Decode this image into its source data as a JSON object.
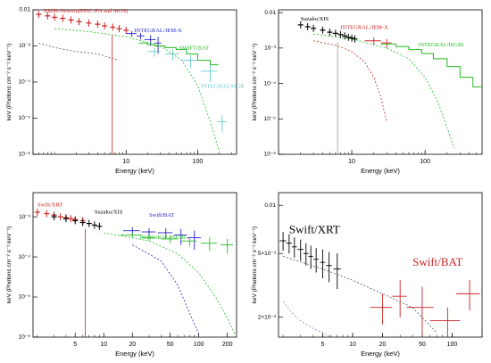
{
  "chart_data": [
    {
      "type": "scatter",
      "panel": "top-left",
      "xlabel": "Energy (keV)",
      "ylabel": "keV (Photons cm⁻² s⁻¹ keV⁻¹)",
      "xscale": "log",
      "yscale": "log",
      "xlim": [
        0.5,
        350
      ],
      "ylim": [
        1e-06,
        0.01
      ],
      "xticks": [
        {
          "v": 10,
          "label": "10"
        },
        {
          "v": 100,
          "label": "100"
        }
      ],
      "yticks": [
        {
          "v": 0.01,
          "label": "0.01"
        },
        {
          "v": 0.001,
          "label": "10⁻³"
        },
        {
          "v": 0.0001,
          "label": "10⁻⁴"
        },
        {
          "v": 1e-05,
          "label": "10⁻⁵"
        },
        {
          "v": 1e-06,
          "label": "10⁻⁶"
        }
      ],
      "annotations": [
        {
          "text": "XMM-Newton(EPIC-PN and MOS)",
          "color": "#cc2222",
          "x": 0.7,
          "y": 0.0085
        },
        {
          "text": "INTEGRAL/JEM-X",
          "color": "#2222cc",
          "x": 13,
          "y": 0.0024
        },
        {
          "text": "SWIFT/BAT",
          "color": "#22bb22",
          "x": 55,
          "y": 0.0008
        },
        {
          "text": "INTEGRAL/ISGRI",
          "color": "#66cccc",
          "x": 110,
          "y": 7e-05
        }
      ],
      "series": [
        {
          "name": "XMM-Newton(EPIC-PN and MOS)",
          "kind": "points",
          "color": "#cc2222",
          "x": [
            0.6,
            0.8,
            1,
            1.3,
            1.7,
            2.2,
            3,
            4,
            5,
            6.5,
            8,
            10
          ],
          "y": [
            0.0075,
            0.0068,
            0.0062,
            0.0058,
            0.0052,
            0.0047,
            0.0043,
            0.004,
            0.0036,
            0.0033,
            0.003,
            0.0027
          ]
        },
        {
          "name": "INTEGRAL/JEM-X",
          "kind": "errorbars",
          "color": "#2222cc",
          "x": [
            12,
            16,
            22,
            28
          ],
          "y": [
            0.0022,
            0.0019,
            0.0015,
            0.0012
          ],
          "xerr": [
            2,
            2,
            4,
            3
          ],
          "yerr": [
            0.0004,
            0.0004,
            0.0005,
            0.0006
          ]
        },
        {
          "name": "SWIFT/BAT",
          "kind": "step",
          "color": "#22bb22",
          "x": [
            15,
            20,
            25,
            35,
            50,
            70,
            100,
            150
          ],
          "y": [
            0.0012,
            0.0011,
            0.001,
            0.0009,
            0.0008,
            0.0006,
            0.0004,
            0.0003
          ]
        },
        {
          "name": "INTEGRAL/ISGRI",
          "kind": "errorbars",
          "color": "#66cccc",
          "x": [
            25,
            45,
            80,
            150,
            220
          ],
          "y": [
            0.0007,
            0.0006,
            0.0004,
            0.0002,
            8e-06
          ],
          "xerr": [
            5,
            10,
            20,
            40,
            30
          ],
          "yerr": [
            0.0002,
            0.0002,
            0.00015,
            0.0001,
            4e-06
          ]
        },
        {
          "kind": "model",
          "color": "#22bb22",
          "dashed": true,
          "x": [
            1,
            3,
            10,
            30,
            60,
            100,
            150,
            200
          ],
          "y": [
            0.003,
            0.0025,
            0.0018,
            0.001,
            0.0004,
            8e-05,
            8e-06,
            1.2e-06
          ]
        },
        {
          "kind": "model",
          "color": "#555555",
          "dashed": true,
          "x": [
            0.6,
            1,
            2,
            4,
            8
          ],
          "y": [
            0.0012,
            0.0009,
            0.0007,
            0.0006,
            0.0004
          ]
        },
        {
          "kind": "line",
          "color": "#cc2222",
          "x": [
            6.4,
            6.4
          ],
          "y": [
            0.002,
            1e-06
          ]
        }
      ]
    },
    {
      "type": "scatter",
      "panel": "top-right",
      "xlabel": "Energy (keV)",
      "ylabel": "keV (Photons cm⁻² s⁻¹ keV⁻¹)",
      "xscale": "log",
      "yscale": "log",
      "xlim": [
        1,
        600
      ],
      "ylim": [
        1e-06,
        0.012
      ],
      "xticks": [
        {
          "v": 10,
          "label": "10"
        },
        {
          "v": 100,
          "label": "100"
        }
      ],
      "yticks": [
        {
          "v": 0.01,
          "label": "0.01"
        },
        {
          "v": 0.001,
          "label": "10⁻³"
        },
        {
          "v": 0.0001,
          "label": "10⁻⁴"
        },
        {
          "v": 1e-05,
          "label": "10⁻⁵"
        },
        {
          "v": 1e-06,
          "label": "10⁻⁶"
        }
      ],
      "annotations": [
        {
          "text": "Suzaku/XIS",
          "color": "#000000",
          "x": 2,
          "y": 0.006
        },
        {
          "text": "INTEGRAL/JEM-X",
          "color": "#cc2222",
          "x": 7,
          "y": 0.0035
        },
        {
          "text": "INTEGRAL/ISGRI",
          "color": "#22bb22",
          "x": 80,
          "y": 0.0011
        }
      ],
      "series": [
        {
          "name": "Suzaku/XIS",
          "kind": "points",
          "color": "#000000",
          "x": [
            2,
            2.5,
            3,
            4,
            5,
            6,
            7,
            8,
            9,
            10,
            11
          ],
          "y": [
            0.0045,
            0.004,
            0.0036,
            0.0032,
            0.0028,
            0.0026,
            0.0024,
            0.0022,
            0.002,
            0.0019,
            0.0018
          ]
        },
        {
          "name": "INTEGRAL/JEM-X",
          "kind": "errorbars",
          "color": "#cc2222",
          "x": [
            20,
            30
          ],
          "y": [
            0.0016,
            0.0014
          ],
          "xerr": [
            5,
            5
          ],
          "yerr": [
            0.0004,
            0.0004
          ]
        },
        {
          "name": "INTEGRAL/ISGRI",
          "kind": "step",
          "color": "#22bb22",
          "x": [
            25,
            40,
            60,
            90,
            130,
            200,
            300,
            450
          ],
          "y": [
            0.0013,
            0.0011,
            0.0009,
            0.0007,
            0.0005,
            0.0003,
            0.00015,
            8e-05
          ]
        },
        {
          "kind": "model",
          "color": "#cc2222",
          "dashed": true,
          "x": [
            3,
            6,
            10,
            15,
            20,
            25,
            30
          ],
          "y": [
            0.0016,
            0.0012,
            0.0008,
            0.0004,
            0.00015,
            4e-05,
            8e-06
          ]
        },
        {
          "kind": "model",
          "color": "#22bb22",
          "dashed": true,
          "x": [
            3,
            10,
            30,
            60,
            100,
            150,
            250
          ],
          "y": [
            0.0025,
            0.0018,
            0.001,
            0.0005,
            0.00015,
            3e-05,
            1.5e-06
          ]
        },
        {
          "kind": "line",
          "color": "#999999",
          "x": [
            6.4,
            6.4
          ],
          "y": [
            0.0015,
            1e-06
          ]
        }
      ]
    },
    {
      "type": "scatter",
      "panel": "bottom-left",
      "xlabel": "Energy (keV)",
      "ylabel": "keV (Photons cm⁻² s⁻¹ keV⁻¹)",
      "xscale": "log",
      "yscale": "log",
      "xlim": [
        1.8,
        250
      ],
      "ylim": [
        1e-06,
        0.004
      ],
      "xticks": [
        {
          "v": 5,
          "label": "5"
        },
        {
          "v": 10,
          "label": "10"
        },
        {
          "v": 20,
          "label": "20"
        },
        {
          "v": 50,
          "label": "50"
        },
        {
          "v": 100,
          "label": "100"
        },
        {
          "v": 200,
          "label": "200"
        }
      ],
      "yticks": [
        {
          "v": 0.001,
          "label": "10⁻³"
        },
        {
          "v": 0.0001,
          "label": "10⁻⁴"
        },
        {
          "v": 1e-05,
          "label": "10⁻⁵"
        },
        {
          "v": 1e-06,
          "label": "10⁻⁶"
        }
      ],
      "annotations": [
        {
          "text": "Swift/XRT",
          "color": "#cc2222",
          "x": 2,
          "y": 0.0018
        },
        {
          "text": "Suzaku/XIS",
          "color": "#000000",
          "x": 8,
          "y": 0.0012
        },
        {
          "text": "Swift/BAT",
          "color": "#2222cc",
          "x": 30,
          "y": 0.001
        },
        {
          "text": "INTEGRAL/ISGRI",
          "color": "#22bb22",
          "x": 24,
          "y": 0.00028
        }
      ],
      "series": [
        {
          "name": "Swift/XRT",
          "kind": "points",
          "color": "#cc2222",
          "x": [
            2,
            2.5,
            3,
            3.5,
            4,
            4.5,
            5,
            6
          ],
          "y": [
            0.0013,
            0.0012,
            0.0011,
            0.001,
            0.00095,
            0.0009,
            0.00085,
            0.0008
          ]
        },
        {
          "name": "Suzaku/XIS",
          "kind": "points",
          "color": "#000000",
          "x": [
            3,
            4,
            5,
            6,
            7,
            8,
            9
          ],
          "y": [
            0.001,
            0.0009,
            0.0008,
            0.00072,
            0.00068,
            0.00062,
            0.00058
          ]
        },
        {
          "name": "Swift/BAT",
          "kind": "errorbars",
          "color": "#2222cc",
          "x": [
            20,
            30,
            45,
            65,
            90
          ],
          "y": [
            0.00045,
            0.00042,
            0.0004,
            0.00035,
            0.0003
          ],
          "xerr": [
            4,
            5,
            8,
            10,
            15
          ],
          "yerr": [
            0.0001,
            0.0001,
            0.00012,
            0.00015,
            0.00015
          ]
        },
        {
          "name": "INTEGRAL/ISGRI",
          "kind": "errorbars",
          "color": "#22bb22",
          "x": [
            20,
            30,
            50,
            80,
            130,
            200
          ],
          "y": [
            0.00035,
            0.0003,
            0.00028,
            0.00025,
            0.00022,
            0.0002
          ],
          "xerr": [
            5,
            5,
            10,
            15,
            25,
            30
          ],
          "yerr": [
            5e-05,
            5e-05,
            6e-05,
            7e-05,
            8e-05,
            8e-05
          ]
        },
        {
          "kind": "model",
          "color": "#2222cc",
          "dashed": true,
          "x": [
            20,
            40,
            60,
            80,
            100
          ],
          "y": [
            0.0002,
            8e-05,
            2e-05,
            4e-06,
            1.2e-06
          ]
        },
        {
          "kind": "model",
          "color": "#22bb22",
          "dashed": true,
          "x": [
            10,
            30,
            60,
            100,
            150,
            200,
            240
          ],
          "y": [
            0.0004,
            0.00025,
            0.00012,
            4e-05,
            1e-05,
            3e-06,
            1.2e-06
          ]
        },
        {
          "kind": "line",
          "color": "#cc2222",
          "x": [
            6.4,
            6.4
          ],
          "y": [
            0.0005,
            1e-06
          ]
        }
      ]
    },
    {
      "type": "scatter",
      "panel": "bottom-right",
      "xlabel": "Energy (keV)",
      "ylabel": "keV (Photons cm⁻² s⁻¹ keV⁻¹)",
      "xscale": "log",
      "yscale": "log",
      "xlim": [
        1.8,
        200
      ],
      "ylim": [
        0.0015,
        0.012
      ],
      "xticks": [
        {
          "v": 5,
          "label": "5"
        },
        {
          "v": 10,
          "label": "10"
        },
        {
          "v": 20,
          "label": "20"
        },
        {
          "v": 50,
          "label": "50"
        },
        {
          "v": 100,
          "label": "100"
        }
      ],
      "yticks": [
        {
          "v": 0.01,
          "label": "0.01"
        },
        {
          "v": 0.005,
          "label": "5×10⁻³"
        },
        {
          "v": 0.002,
          "label": "2×10⁻³"
        }
      ],
      "annotations": [
        {
          "text": "Swift/XRT",
          "color": "#000000",
          "x": 2.3,
          "y": 0.0067,
          "size": 13
        },
        {
          "text": "Swift/BAT",
          "color": "#cc2222",
          "x": 40,
          "y": 0.0042,
          "size": 13
        }
      ],
      "series": [
        {
          "name": "Swift/XRT",
          "kind": "errorbars",
          "color": "#000000",
          "x": [
            2,
            2.3,
            2.6,
            3,
            3.4,
            3.8,
            4.3,
            5,
            5.8,
            7
          ],
          "y": [
            0.006,
            0.0058,
            0.0055,
            0.0053,
            0.005,
            0.0048,
            0.0046,
            0.0044,
            0.0042,
            0.004
          ],
          "xerr": [
            0.15,
            0.15,
            0.15,
            0.2,
            0.2,
            0.2,
            0.25,
            0.3,
            0.4,
            0.6
          ],
          "yerr": [
            0.0008,
            0.0008,
            0.0008,
            0.0008,
            0.0008,
            0.0008,
            0.0008,
            0.0009,
            0.0009,
            0.001
          ]
        },
        {
          "name": "Swift/BAT",
          "kind": "errorbars",
          "color": "#cc2222",
          "x": [
            20,
            30,
            50,
            90,
            150
          ],
          "y": [
            0.0023,
            0.0027,
            0.0023,
            0.0019,
            0.0028
          ],
          "xerr": [
            5,
            5,
            15,
            30,
            40
          ],
          "yerr": [
            0.0005,
            0.0007,
            0.0008,
            0.0004,
            0.0006
          ]
        },
        {
          "kind": "model",
          "color": "#555555",
          "dashed": true,
          "x": [
            2,
            5,
            10,
            20,
            40,
            70
          ],
          "y": [
            0.0048,
            0.004,
            0.0034,
            0.0028,
            0.0023,
            0.0016
          ]
        },
        {
          "kind": "model",
          "color": "#8888cc",
          "dashed": true,
          "x": [
            2,
            2.5,
            3,
            4,
            5,
            6
          ],
          "y": [
            0.0025,
            0.0021,
            0.0019,
            0.0017,
            0.0016,
            0.0015
          ]
        }
      ]
    }
  ]
}
